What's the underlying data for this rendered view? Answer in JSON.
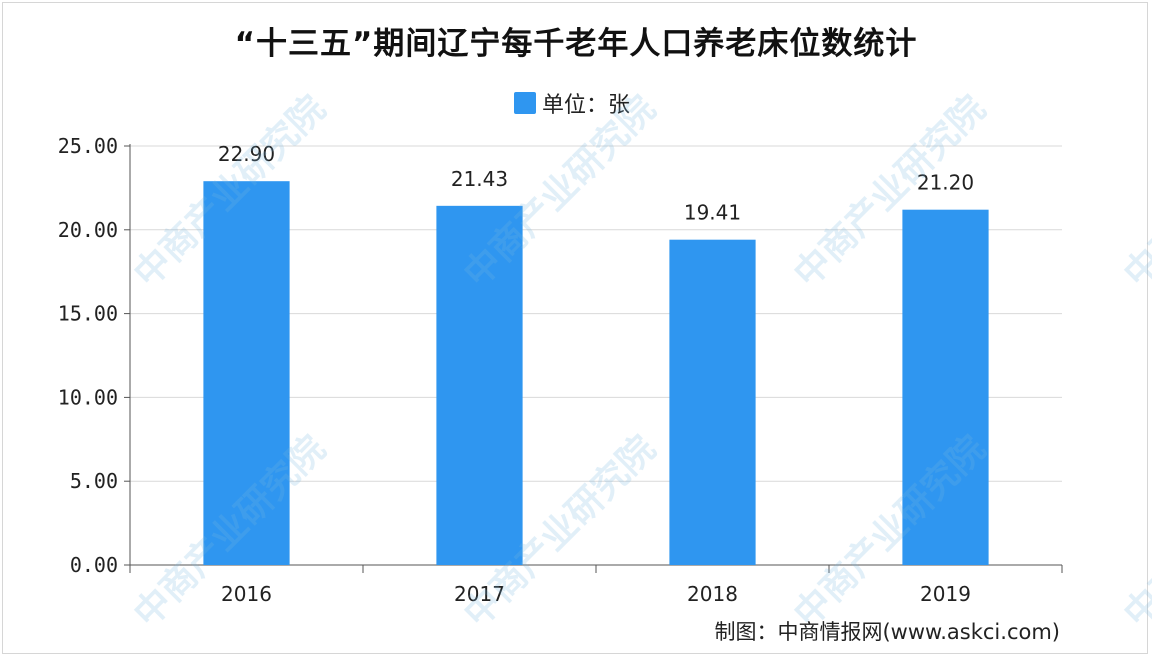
{
  "title": "“十三五”期间辽宁每千老年人口养老床位数统计",
  "legend": {
    "label": "单位：张",
    "color": "#2f96f0"
  },
  "source": "制图：中商情报网(www.askci.com)",
  "watermark": "中商产业研究院",
  "chart_data": {
    "type": "bar",
    "title": "“十三五”期间辽宁每千老年人口养老床位数统计",
    "categories": [
      "2016",
      "2017",
      "2018",
      "2019"
    ],
    "values": [
      22.9,
      21.43,
      19.41,
      21.2
    ],
    "value_labels": [
      "22.90",
      "21.43",
      "19.41",
      "21.20"
    ],
    "ylim": [
      0,
      25
    ],
    "y_ticks": [
      "0.00",
      "5.00",
      "10.00",
      "15.00",
      "20.00",
      "25.00"
    ],
    "grid": true,
    "legend_position": "top-center",
    "series": [
      {
        "name": "单位：张",
        "values": [
          22.9,
          21.43,
          19.41,
          21.2
        ]
      }
    ]
  }
}
